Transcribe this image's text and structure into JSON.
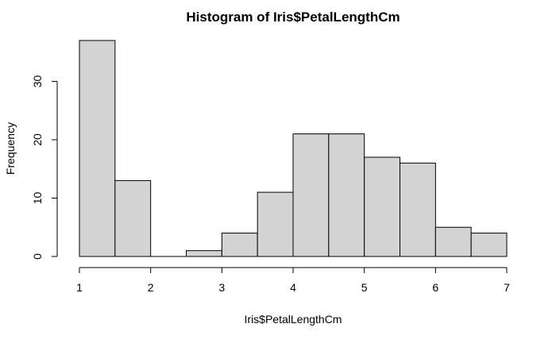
{
  "chart_data": {
    "type": "bar",
    "title": "Histogram of Iris$PetalLengthCm",
    "xlabel": "Iris$PetalLengthCm",
    "ylabel": "Frequency",
    "bins": [
      {
        "start": 1.0,
        "end": 1.5,
        "count": 37
      },
      {
        "start": 1.5,
        "end": 2.0,
        "count": 13
      },
      {
        "start": 2.0,
        "end": 2.5,
        "count": 0
      },
      {
        "start": 2.5,
        "end": 3.0,
        "count": 1
      },
      {
        "start": 3.0,
        "end": 3.5,
        "count": 4
      },
      {
        "start": 3.5,
        "end": 4.0,
        "count": 11
      },
      {
        "start": 4.0,
        "end": 4.5,
        "count": 21
      },
      {
        "start": 4.5,
        "end": 5.0,
        "count": 21
      },
      {
        "start": 5.0,
        "end": 5.5,
        "count": 17
      },
      {
        "start": 5.5,
        "end": 6.0,
        "count": 16
      },
      {
        "start": 6.0,
        "end": 6.5,
        "count": 5
      },
      {
        "start": 6.5,
        "end": 7.0,
        "count": 4
      }
    ],
    "x_ticks": [
      "1",
      "2",
      "3",
      "4",
      "5",
      "6",
      "7"
    ],
    "y_ticks": [
      "0",
      "10",
      "20",
      "30"
    ],
    "xlim": [
      1,
      7
    ],
    "ylim": [
      0,
      37
    ],
    "grid": false,
    "bar_color": "#d3d3d3",
    "edge_color": "#000000"
  }
}
